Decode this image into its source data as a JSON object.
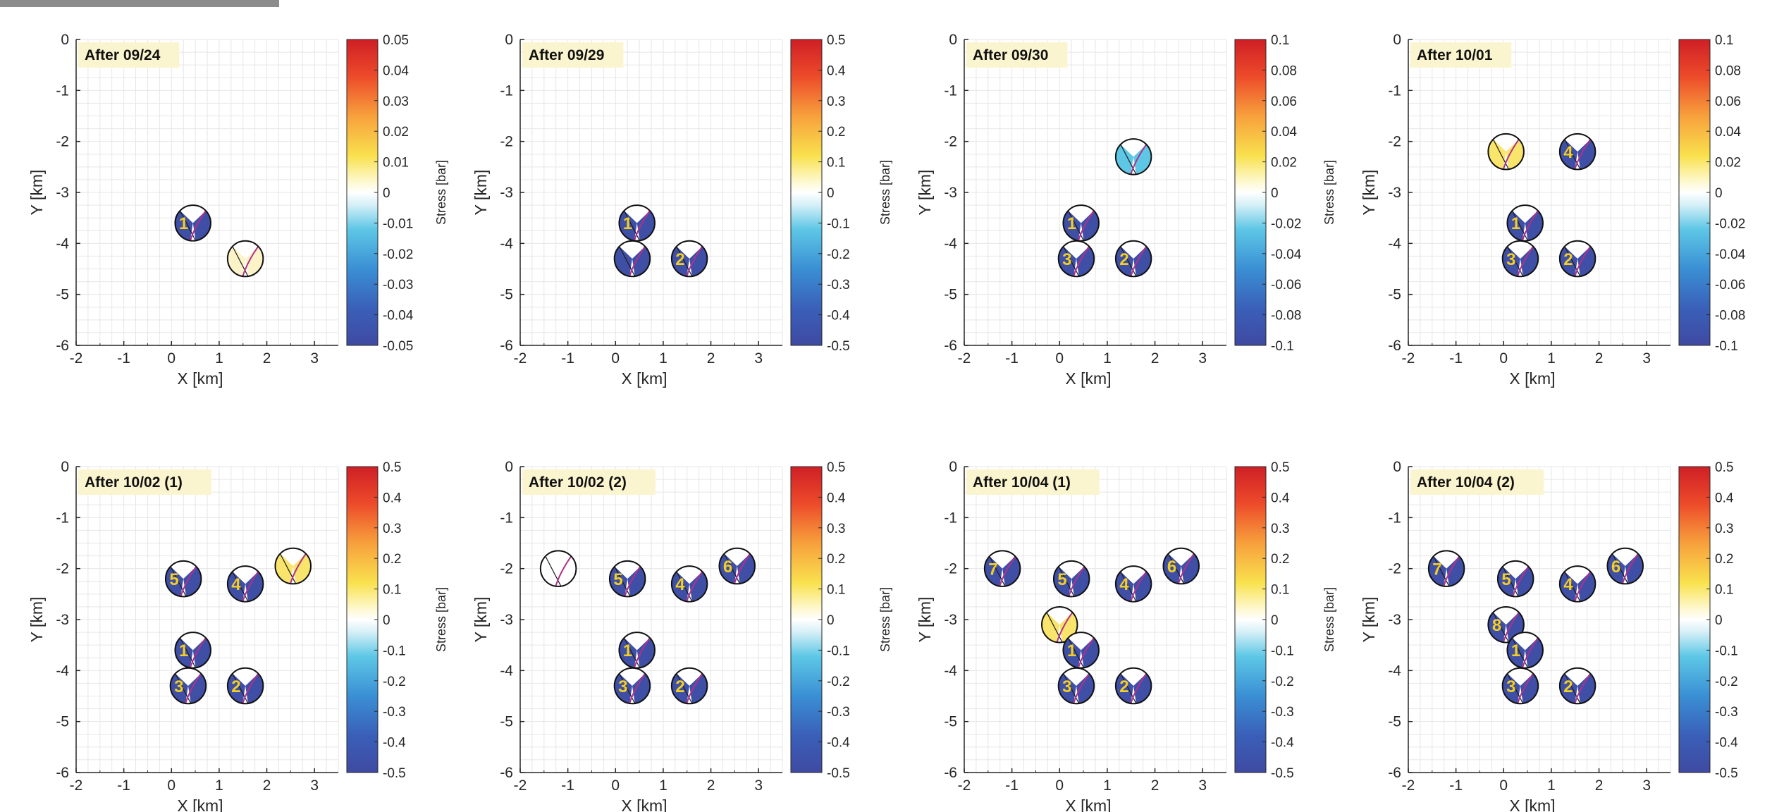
{
  "chart_data": [
    {
      "type": "scatter",
      "title": "After 09/24",
      "xlabel": "X [km]",
      "ylabel": "Y [km]",
      "xlim": [
        -2,
        3.5
      ],
      "ylim": [
        -6,
        0
      ],
      "xticks": [
        "-2",
        "-1",
        "0",
        "1",
        "2",
        "3"
      ],
      "yticks": [
        "0",
        "-1",
        "-2",
        "-3",
        "-4",
        "-5",
        "-6"
      ],
      "grid": true,
      "colorbar": {
        "label": "Stress [bar]",
        "ticks": [
          "0.05",
          "0.04",
          "0.03",
          "0.02",
          "0.01",
          "0",
          "-0.01",
          "-0.02",
          "-0.03",
          "-0.04",
          "-0.05"
        ]
      },
      "events": [
        {
          "label": "1",
          "x": 0.45,
          "y": -3.6,
          "stress": "-0.05"
        },
        {
          "label": "",
          "x": 1.55,
          "y": -4.3,
          "stress": "0.006"
        }
      ]
    },
    {
      "type": "scatter",
      "title": "After 09/29",
      "xlabel": "X [km]",
      "ylabel": "Y [km]",
      "xlim": [
        -2,
        3.5
      ],
      "ylim": [
        -6,
        0
      ],
      "xticks": [
        "-2",
        "-1",
        "0",
        "1",
        "2",
        "3"
      ],
      "yticks": [
        "0",
        "-1",
        "-2",
        "-3",
        "-4",
        "-5",
        "-6"
      ],
      "grid": true,
      "colorbar": {
        "label": "Stress [bar]",
        "ticks": [
          "0.5",
          "0.4",
          "0.3",
          "0.2",
          "0.1",
          "0",
          "-0.1",
          "-0.2",
          "-0.3",
          "-0.4",
          "-0.5"
        ]
      },
      "events": [
        {
          "label": "1",
          "x": 0.45,
          "y": -3.6,
          "stress": "-0.5"
        },
        {
          "label": "",
          "x": 0.35,
          "y": -4.3,
          "stress": "-0.5"
        },
        {
          "label": "2",
          "x": 1.55,
          "y": -4.3,
          "stress": "-0.5"
        }
      ]
    },
    {
      "type": "scatter",
      "title": "After 09/30",
      "xlabel": "X [km]",
      "ylabel": "Y [km]",
      "xlim": [
        -2,
        3.5
      ],
      "ylim": [
        -6,
        0
      ],
      "xticks": [
        "-2",
        "-1",
        "0",
        "1",
        "2",
        "3"
      ],
      "yticks": [
        "0",
        "-1",
        "-2",
        "-3",
        "-4",
        "-5",
        "-6"
      ],
      "grid": true,
      "colorbar": {
        "label": "Stress [bar]",
        "ticks": [
          "0.1",
          "0.08",
          "0.06",
          "0.04",
          "0.02",
          "0",
          "-0.02",
          "-0.04",
          "-0.06",
          "-0.08",
          "-0.1"
        ]
      },
      "events": [
        {
          "label": "",
          "x": 1.55,
          "y": -2.3,
          "stress": "-0.03"
        },
        {
          "label": "1",
          "x": 0.45,
          "y": -3.6,
          "stress": "-0.1"
        },
        {
          "label": "3",
          "x": 0.35,
          "y": -4.3,
          "stress": "-0.1"
        },
        {
          "label": "2",
          "x": 1.55,
          "y": -4.3,
          "stress": "-0.1"
        }
      ]
    },
    {
      "type": "scatter",
      "title": "After 10/01",
      "xlabel": "X [km]",
      "ylabel": "Y [km]",
      "xlim": [
        -2,
        3.5
      ],
      "ylim": [
        -6,
        0
      ],
      "xticks": [
        "-2",
        "-1",
        "0",
        "1",
        "2",
        "3"
      ],
      "yticks": [
        "0",
        "-1",
        "-2",
        "-3",
        "-4",
        "-5",
        "-6"
      ],
      "grid": true,
      "colorbar": {
        "label": "Stress [bar]",
        "ticks": [
          "0.1",
          "0.08",
          "0.06",
          "0.04",
          "0.02",
          "0",
          "-0.02",
          "-0.04",
          "-0.06",
          "-0.08",
          "-0.1"
        ]
      },
      "events": [
        {
          "label": "",
          "x": 0.05,
          "y": -2.2,
          "stress": "0.03"
        },
        {
          "label": "4",
          "x": 1.55,
          "y": -2.2,
          "stress": "-0.1"
        },
        {
          "label": "1",
          "x": 0.45,
          "y": -3.6,
          "stress": "-0.1"
        },
        {
          "label": "3",
          "x": 0.35,
          "y": -4.3,
          "stress": "-0.1"
        },
        {
          "label": "2",
          "x": 1.55,
          "y": -4.3,
          "stress": "-0.1"
        }
      ]
    },
    {
      "type": "scatter",
      "title": "After 10/02 (1)",
      "xlabel": "X [km]",
      "ylabel": "Y [km]",
      "xlim": [
        -2,
        3.5
      ],
      "ylim": [
        -6,
        0
      ],
      "xticks": [
        "-2",
        "-1",
        "0",
        "1",
        "2",
        "3"
      ],
      "yticks": [
        "0",
        "-1",
        "-2",
        "-3",
        "-4",
        "-5",
        "-6"
      ],
      "grid": true,
      "colorbar": {
        "label": "Stress [bar]",
        "ticks": [
          "0.5",
          "0.4",
          "0.3",
          "0.2",
          "0.1",
          "0",
          "-0.1",
          "-0.2",
          "-0.3",
          "-0.4",
          "-0.5"
        ]
      },
      "events": [
        {
          "label": "5",
          "x": 0.25,
          "y": -2.2,
          "stress": "-0.5"
        },
        {
          "label": "4",
          "x": 1.55,
          "y": -2.3,
          "stress": "-0.5"
        },
        {
          "label": "",
          "x": 2.55,
          "y": -1.95,
          "stress": "0.2"
        },
        {
          "label": "1",
          "x": 0.45,
          "y": -3.6,
          "stress": "-0.5"
        },
        {
          "label": "3",
          "x": 0.35,
          "y": -4.3,
          "stress": "-0.5"
        },
        {
          "label": "2",
          "x": 1.55,
          "y": -4.3,
          "stress": "-0.5"
        }
      ]
    },
    {
      "type": "scatter",
      "title": "After 10/02 (2)",
      "xlabel": "X [km]",
      "ylabel": "Y [km]",
      "xlim": [
        -2,
        3.5
      ],
      "ylim": [
        -6,
        0
      ],
      "xticks": [
        "-2",
        "-1",
        "0",
        "1",
        "2",
        "3"
      ],
      "yticks": [
        "0",
        "-1",
        "-2",
        "-3",
        "-4",
        "-5",
        "-6"
      ],
      "grid": true,
      "colorbar": {
        "label": "Stress [bar]",
        "ticks": [
          "0.5",
          "0.4",
          "0.3",
          "0.2",
          "0.1",
          "0",
          "-0.1",
          "-0.2",
          "-0.3",
          "-0.4",
          "-0.5"
        ]
      },
      "events": [
        {
          "label": "",
          "x": -1.2,
          "y": -2.0,
          "stress": "0"
        },
        {
          "label": "5",
          "x": 0.25,
          "y": -2.2,
          "stress": "-0.5"
        },
        {
          "label": "4",
          "x": 1.55,
          "y": -2.3,
          "stress": "-0.5"
        },
        {
          "label": "6",
          "x": 2.55,
          "y": -1.95,
          "stress": "-0.5"
        },
        {
          "label": "1",
          "x": 0.45,
          "y": -3.6,
          "stress": "-0.5"
        },
        {
          "label": "3",
          "x": 0.35,
          "y": -4.3,
          "stress": "-0.5"
        },
        {
          "label": "2",
          "x": 1.55,
          "y": -4.3,
          "stress": "-0.5"
        }
      ]
    },
    {
      "type": "scatter",
      "title": "After 10/04 (1)",
      "xlabel": "X [km]",
      "ylabel": "Y [km]",
      "xlim": [
        -2,
        3.5
      ],
      "ylim": [
        -6,
        0
      ],
      "xticks": [
        "-2",
        "-1",
        "0",
        "1",
        "2",
        "3"
      ],
      "yticks": [
        "0",
        "-1",
        "-2",
        "-3",
        "-4",
        "-5",
        "-6"
      ],
      "grid": true,
      "colorbar": {
        "label": "Stress [bar]",
        "ticks": [
          "0.5",
          "0.4",
          "0.3",
          "0.2",
          "0.1",
          "0",
          "-0.1",
          "-0.2",
          "-0.3",
          "-0.4",
          "-0.5"
        ]
      },
      "events": [
        {
          "label": "7",
          "x": -1.2,
          "y": -2.0,
          "stress": "-0.5"
        },
        {
          "label": "5",
          "x": 0.25,
          "y": -2.2,
          "stress": "-0.5"
        },
        {
          "label": "4",
          "x": 1.55,
          "y": -2.3,
          "stress": "-0.5"
        },
        {
          "label": "6",
          "x": 2.55,
          "y": -1.95,
          "stress": "-0.5"
        },
        {
          "label": "",
          "x": 0.0,
          "y": -3.1,
          "stress": "0.2"
        },
        {
          "label": "1",
          "x": 0.45,
          "y": -3.6,
          "stress": "-0.5"
        },
        {
          "label": "3",
          "x": 0.35,
          "y": -4.3,
          "stress": "-0.5"
        },
        {
          "label": "2",
          "x": 1.55,
          "y": -4.3,
          "stress": "-0.5"
        }
      ]
    },
    {
      "type": "scatter",
      "title": "After 10/04 (2)",
      "xlabel": "X [km]",
      "ylabel": "Y [km]",
      "xlim": [
        -2,
        3.5
      ],
      "ylim": [
        -6,
        0
      ],
      "xticks": [
        "-2",
        "-1",
        "0",
        "1",
        "2",
        "3"
      ],
      "yticks": [
        "0",
        "-1",
        "-2",
        "-3",
        "-4",
        "-5",
        "-6"
      ],
      "grid": true,
      "colorbar": {
        "label": "Stress [bar]",
        "ticks": [
          "0.5",
          "0.4",
          "0.3",
          "0.2",
          "0.1",
          "0",
          "-0.1",
          "-0.2",
          "-0.3",
          "-0.4",
          "-0.5"
        ]
      },
      "events": [
        {
          "label": "7",
          "x": -1.2,
          "y": -2.0,
          "stress": "-0.5"
        },
        {
          "label": "5",
          "x": 0.25,
          "y": -2.2,
          "stress": "-0.5"
        },
        {
          "label": "4",
          "x": 1.55,
          "y": -2.3,
          "stress": "-0.5"
        },
        {
          "label": "6",
          "x": 2.55,
          "y": -1.95,
          "stress": "-0.5"
        },
        {
          "label": "8",
          "x": 0.05,
          "y": -3.1,
          "stress": "-0.5"
        },
        {
          "label": "1",
          "x": 0.45,
          "y": -3.6,
          "stress": "-0.5"
        },
        {
          "label": "3",
          "x": 0.35,
          "y": -4.3,
          "stress": "-0.5"
        },
        {
          "label": "2",
          "x": 1.55,
          "y": -4.3,
          "stress": "-0.5"
        }
      ]
    }
  ],
  "colors": {
    "beachball_fill": "#3f4fa6",
    "nodal_line": "#b2308c",
    "label_text": "#f2cf22",
    "title_box": "#fbf5cf",
    "grid": "#e6e6e6",
    "top_bar": "#8c8c8c"
  }
}
